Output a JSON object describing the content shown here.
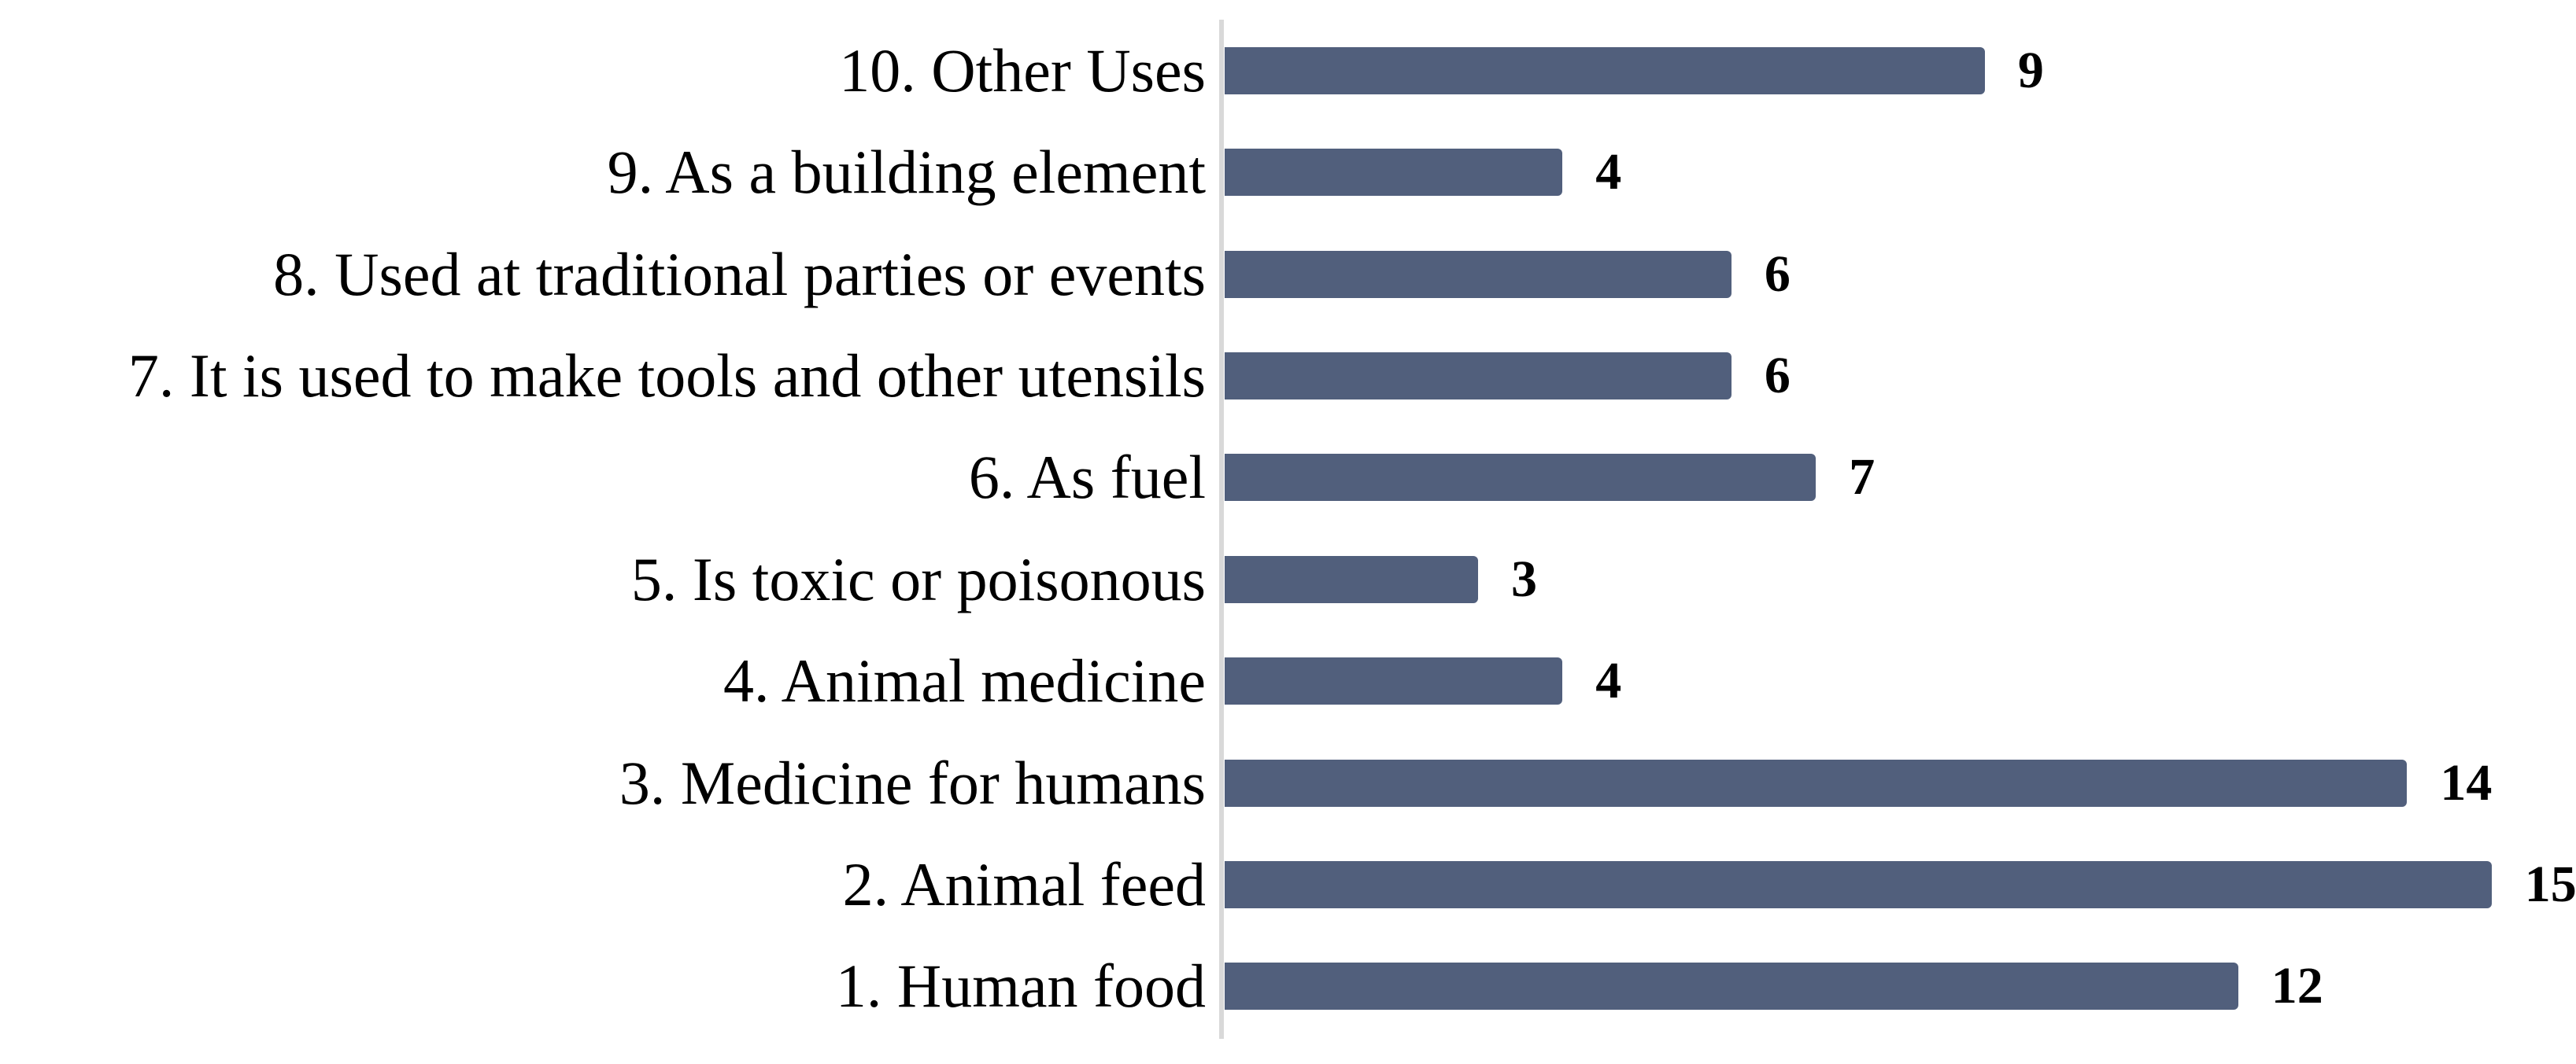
{
  "chart_data": {
    "type": "bar",
    "orientation": "horizontal",
    "title": "",
    "xlabel": "",
    "ylabel": "",
    "categories": [
      "10. Other Uses",
      "9. As a building element",
      "8. Used at traditional parties or events",
      "7. It is used to make tools and other utensils",
      "6. As fuel",
      "5. Is toxic or poisonous",
      "4. Animal medicine",
      "3. Medicine for humans",
      "2. Animal feed",
      "1. Human food"
    ],
    "values": [
      9,
      4,
      6,
      6,
      7,
      3,
      4,
      14,
      15,
      12
    ],
    "value_labels": [
      "9",
      "4",
      "6",
      "6",
      "7",
      "3",
      "4",
      "14",
      "15",
      "12"
    ],
    "xlim": [
      0,
      16
    ],
    "grid": false,
    "legend": false,
    "bar_color": "#515F7C",
    "axis_line_color": "#D9D9D9",
    "data_label_color": "#000000",
    "category_label_color": "#000000",
    "background_color": "#FFFFFF"
  }
}
